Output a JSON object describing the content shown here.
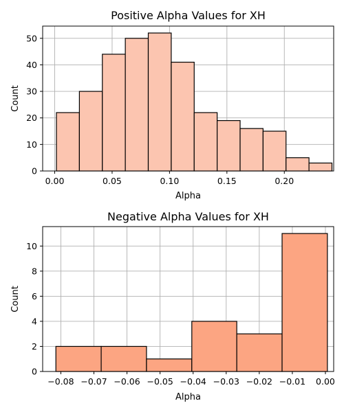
{
  "chart_data": [
    {
      "type": "bar",
      "title": "Positive Alpha Values for XH",
      "xlabel": "Alpha",
      "ylabel": "Count",
      "xlim": [
        -0.0105,
        0.243
      ],
      "ylim": [
        0,
        54.6
      ],
      "x_ticks": [
        0.0,
        0.05,
        0.1,
        0.15,
        0.2
      ],
      "x_tick_labels": [
        "0.00",
        "0.05",
        "0.10",
        "0.15",
        "0.20"
      ],
      "y_ticks": [
        0,
        10,
        20,
        30,
        40,
        50
      ],
      "y_tick_labels": [
        "0",
        "10",
        "20",
        "30",
        "40",
        "50"
      ],
      "bin_edges": [
        0.0015,
        0.0215,
        0.0415,
        0.0615,
        0.0815,
        0.1015,
        0.1215,
        0.1415,
        0.1615,
        0.1815,
        0.2015,
        0.2215,
        0.2415
      ],
      "bin_edges_note": "",
      "values": [
        22,
        30,
        44,
        50,
        52,
        41,
        22,
        19,
        16,
        15,
        5,
        3
      ],
      "bar_color": "#fcc5b0",
      "grid": true
    },
    {
      "type": "bar",
      "title": "Negative Alpha Values for XH",
      "xlabel": "Alpha",
      "ylabel": "Count",
      "xlim": [
        -0.0855,
        0.0025
      ],
      "ylim": [
        0,
        11.55
      ],
      "x_ticks": [
        -0.08,
        -0.07,
        -0.06,
        -0.05,
        -0.04,
        -0.03,
        -0.02,
        -0.01,
        0.0
      ],
      "x_tick_labels": [
        "−0.08",
        "−0.07",
        "−0.06",
        "−0.05",
        "−0.04",
        "−0.03",
        "−0.02",
        "−0.01",
        "0.00"
      ],
      "y_ticks": [
        0,
        2,
        4,
        6,
        8,
        10
      ],
      "y_tick_labels": [
        "0",
        "2",
        "4",
        "6",
        "8",
        "10"
      ],
      "bin_edges": [
        -0.0815,
        -0.0678,
        -0.0541,
        -0.0404,
        -0.0268,
        -0.0131,
        0.0006
      ],
      "values": [
        2,
        2,
        1,
        4,
        3,
        11
      ],
      "bar_color": "#fca582",
      "grid": true
    }
  ]
}
